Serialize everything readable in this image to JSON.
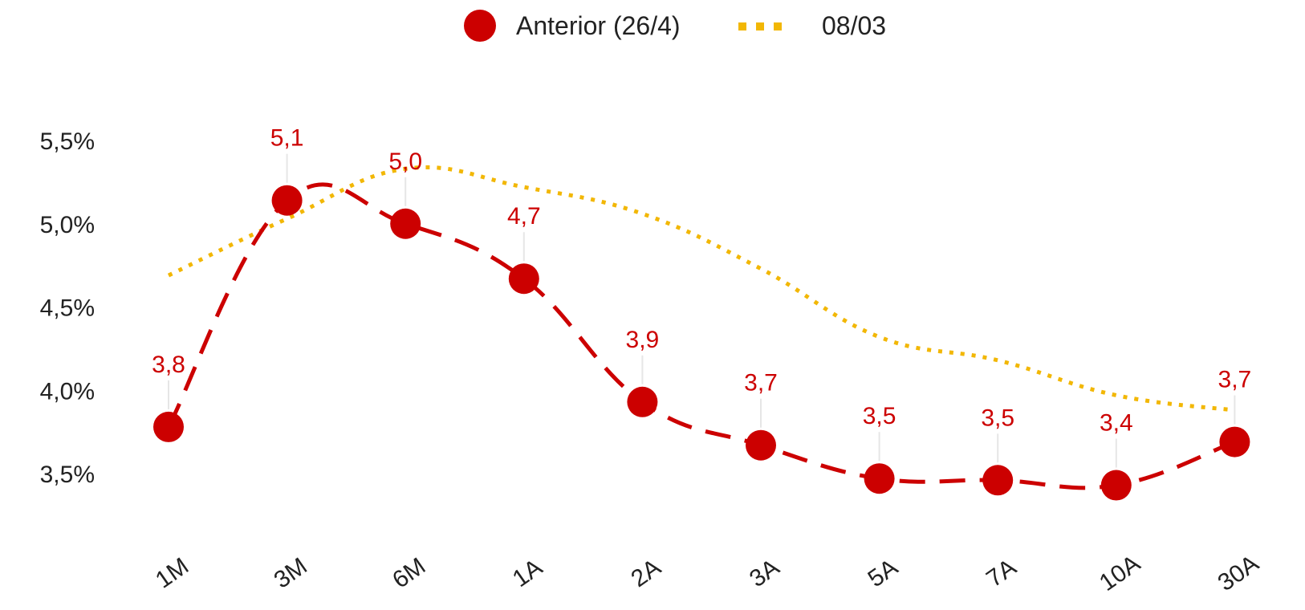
{
  "chart_data": {
    "type": "line",
    "categories": [
      "1M",
      "3M",
      "6M",
      "1A",
      "2A",
      "3A",
      "5A",
      "7A",
      "10A",
      "30A"
    ],
    "series": [
      {
        "name": "Anterior (26/4)",
        "values": [
          3.78,
          5.14,
          5.0,
          4.67,
          3.93,
          3.67,
          3.47,
          3.46,
          3.43,
          3.69
        ],
        "labels": [
          "3,8",
          "5,1",
          "5,0",
          "4,7",
          "3,9",
          "3,7",
          "3,5",
          "3,5",
          "3,4",
          "3,7"
        ],
        "color": "#cc0000",
        "line_style": "dashed",
        "markers": true
      },
      {
        "name": "08/03",
        "values": [
          4.69,
          5.03,
          5.33,
          5.22,
          5.06,
          4.73,
          4.32,
          4.18,
          3.97,
          3.88
        ],
        "color": "#f2b705",
        "line_style": "dotted",
        "markers": false
      }
    ],
    "yticks": [
      "3,5%",
      "4,0%",
      "4,5%",
      "5,0%",
      "5,5%"
    ],
    "ytick_values": [
      3.5,
      4.0,
      4.5,
      5.0,
      5.5
    ],
    "ylim": [
      3.2,
      5.65
    ],
    "grid": false,
    "legend_position": "top-center",
    "title": "",
    "xlabel": "",
    "ylabel": ""
  }
}
